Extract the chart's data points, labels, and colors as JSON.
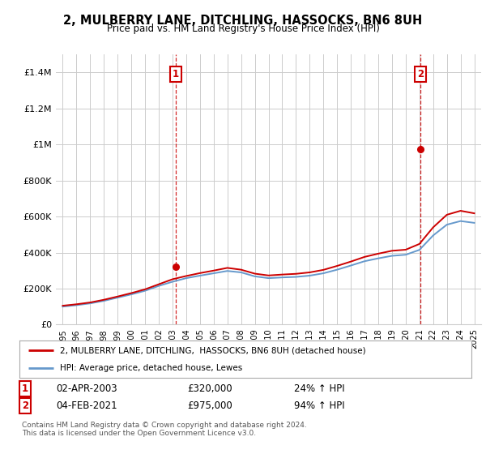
{
  "title": "2, MULBERRY LANE, DITCHLING, HASSOCKS, BN6 8UH",
  "subtitle": "Price paid vs. HM Land Registry's House Price Index (HPI)",
  "ylabel_ticks": [
    "£0",
    "£200K",
    "£400K",
    "£600K",
    "£800K",
    "£1M",
    "£1.2M",
    "£1.4M"
  ],
  "ylabel_values": [
    0,
    200000,
    400000,
    600000,
    800000,
    1000000,
    1200000,
    1400000
  ],
  "ylim": [
    0,
    1500000
  ],
  "sale1_x": 8.25,
  "sale1_price": 320000,
  "sale1_date_text": "02-APR-2003",
  "sale1_price_text": "£320,000",
  "sale1_pct": "24% ↑ HPI",
  "sale2_x": 26.08,
  "sale2_price": 975000,
  "sale2_date_text": "04-FEB-2021",
  "sale2_price_text": "£975,000",
  "sale2_pct": "94% ↑ HPI",
  "hpi_color": "#6699cc",
  "price_color": "#cc0000",
  "grid_color": "#cccccc",
  "background_color": "#ffffff",
  "legend_line1": "2, MULBERRY LANE, DITCHLING,  HASSOCKS, BN6 8UH (detached house)",
  "legend_line2": "HPI: Average price, detached house, Lewes",
  "footer": "Contains HM Land Registry data © Crown copyright and database right 2024.\nThis data is licensed under the Open Government Licence v3.0.",
  "x_labels": [
    "1995",
    "1996",
    "1997",
    "1998",
    "1999",
    "2000",
    "2001",
    "2002",
    "2003",
    "2004",
    "2005",
    "2006",
    "2007",
    "2008",
    "2009",
    "2010",
    "2011",
    "2012",
    "2013",
    "2014",
    "2015",
    "2016",
    "2017",
    "2018",
    "2019",
    "2020",
    "2021",
    "2022",
    "2023",
    "2024",
    "2025"
  ],
  "hpi_data": [
    100000,
    108000,
    118000,
    132000,
    150000,
    168000,
    188000,
    215000,
    238000,
    258000,
    272000,
    285000,
    298000,
    290000,
    268000,
    258000,
    262000,
    265000,
    272000,
    285000,
    305000,
    328000,
    352000,
    368000,
    382000,
    388000,
    415000,
    495000,
    555000,
    575000,
    565000
  ],
  "price_data": [
    105000,
    113000,
    123000,
    138000,
    156000,
    175000,
    196000,
    224000,
    252000,
    270000,
    286000,
    300000,
    315000,
    305000,
    283000,
    273000,
    278000,
    282000,
    290000,
    304000,
    326000,
    350000,
    376000,
    394000,
    410000,
    416000,
    448000,
    540000,
    610000,
    632000,
    618000
  ]
}
